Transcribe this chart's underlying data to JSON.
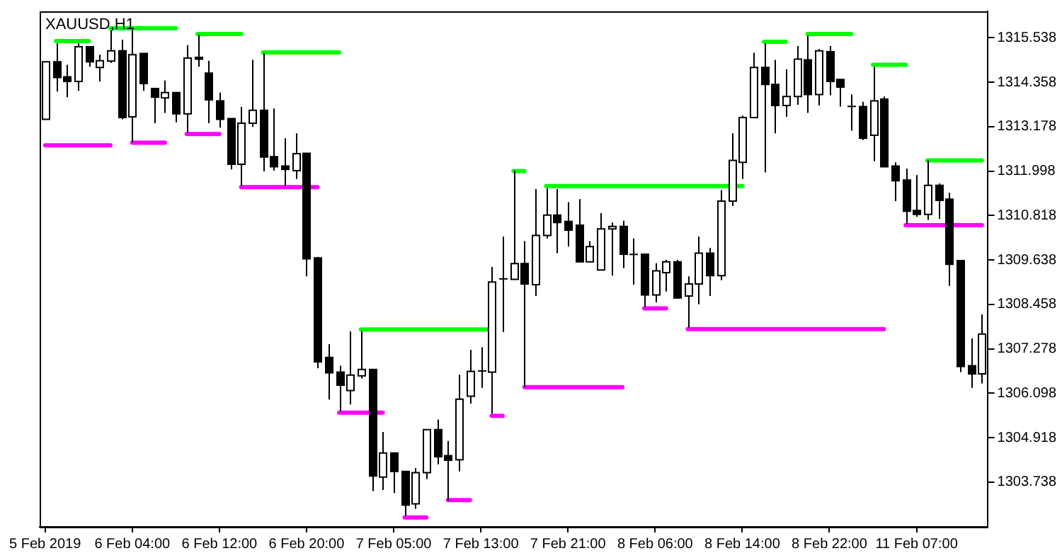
{
  "chart_data": {
    "type": "candlestick",
    "title": "XAUUSD,H1",
    "categories": [
      "5 Feb 2019",
      null,
      null,
      null,
      null,
      null,
      null,
      null,
      "6 Feb 04:00",
      null,
      null,
      null,
      null,
      null,
      null,
      null,
      "6 Feb 12:00",
      null,
      null,
      null,
      null,
      null,
      null,
      null,
      "6 Feb 20:00",
      null,
      null,
      null,
      null,
      null,
      null,
      null,
      "7 Feb 05:00",
      null,
      null,
      null,
      null,
      null,
      null,
      null,
      "7 Feb 13:00",
      null,
      null,
      null,
      null,
      null,
      null,
      null,
      "7 Feb 21:00",
      null,
      null,
      null,
      null,
      null,
      null,
      null,
      "8 Feb 06:00",
      null,
      null,
      null,
      null,
      null,
      null,
      null,
      "8 Feb 14:00",
      null,
      null,
      null,
      null,
      null,
      null,
      null,
      "8 Feb 22:00",
      null,
      null,
      null,
      null,
      null,
      null,
      null,
      "11 Feb 07:00",
      null,
      null,
      null,
      null,
      null,
      null
    ],
    "ohlc": [
      [
        1313.37,
        1314.9,
        1313.37,
        1314.9
      ],
      [
        1314.9,
        1315.39,
        1314.11,
        1314.48
      ],
      [
        1314.5,
        1314.82,
        1313.96,
        1314.38
      ],
      [
        1314.38,
        1315.39,
        1314.13,
        1315.3
      ],
      [
        1315.3,
        1315.3,
        1314.77,
        1314.9
      ],
      [
        1314.75,
        1315.09,
        1314.38,
        1314.93
      ],
      [
        1314.92,
        1315.73,
        1314.87,
        1315.19
      ],
      [
        1315.19,
        1315.49,
        1313.37,
        1313.42
      ],
      [
        1313.44,
        1315.76,
        1312.77,
        1315.09
      ],
      [
        1315.12,
        1315.12,
        1314.13,
        1314.32
      ],
      [
        1314.19,
        1314.19,
        1313.27,
        1313.96
      ],
      [
        1313.94,
        1314.4,
        1313.54,
        1314.08
      ],
      [
        1314.08,
        1314.08,
        1313.29,
        1313.52
      ],
      [
        1313.52,
        1315.34,
        1313.02,
        1315.0
      ],
      [
        1315.02,
        1315.61,
        1314.77,
        1314.97
      ],
      [
        1314.6,
        1314.93,
        1313.27,
        1313.89
      ],
      [
        1313.86,
        1314.08,
        1313.15,
        1313.37
      ],
      [
        1313.39,
        1313.39,
        1312.04,
        1312.18
      ],
      [
        1312.18,
        1313.7,
        1311.6,
        1313.27
      ],
      [
        1313.27,
        1314.95,
        1313.17,
        1313.61
      ],
      [
        1313.61,
        1315.12,
        1311.99,
        1312.37
      ],
      [
        1312.38,
        1313.66,
        1312.01,
        1312.11
      ],
      [
        1312.13,
        1312.87,
        1311.6,
        1312.04
      ],
      [
        1312.01,
        1313.0,
        1311.79,
        1312.46
      ],
      [
        1312.47,
        1312.47,
        1309.2,
        1309.67
      ],
      [
        1309.69,
        1309.72,
        1306.76,
        1306.93
      ],
      [
        1307.05,
        1307.4,
        1305.93,
        1306.64
      ],
      [
        1306.66,
        1306.83,
        1305.62,
        1306.31
      ],
      [
        1306.17,
        1307.74,
        1305.8,
        1306.58
      ],
      [
        1306.56,
        1307.74,
        1306.49,
        1306.73
      ],
      [
        1306.73,
        1306.73,
        1303.5,
        1303.9
      ],
      [
        1303.87,
        1305.07,
        1303.53,
        1304.51
      ],
      [
        1304.51,
        1304.51,
        1303.45,
        1304.02
      ],
      [
        1304.02,
        1304.02,
        1302.84,
        1303.13
      ],
      [
        1303.16,
        1304.11,
        1303.03,
        1303.99
      ],
      [
        1303.99,
        1305.13,
        1303.82,
        1305.13
      ],
      [
        1305.13,
        1305.4,
        1304.21,
        1304.41
      ],
      [
        1304.44,
        1304.83,
        1303.25,
        1304.32
      ],
      [
        1304.33,
        1306.59,
        1304.02,
        1305.94
      ],
      [
        1306.02,
        1307.25,
        1305.82,
        1306.68
      ],
      [
        1306.68,
        1307.32,
        1306.24,
        1306.7
      ],
      [
        1306.66,
        1309.45,
        1305.56,
        1309.05
      ],
      [
        1309.12,
        1310.26,
        1307.72,
        1309.15
      ],
      [
        1309.12,
        1312.01,
        1309.12,
        1309.54
      ],
      [
        1309.54,
        1310.14,
        1306.27,
        1309.0
      ],
      [
        1308.98,
        1311.52,
        1308.68,
        1310.29
      ],
      [
        1310.29,
        1311.54,
        1310.21,
        1310.83
      ],
      [
        1310.83,
        1311.52,
        1309.82,
        1310.63
      ],
      [
        1310.66,
        1311.17,
        1309.99,
        1310.43
      ],
      [
        1310.56,
        1311.25,
        1309.59,
        1309.59
      ],
      [
        1309.59,
        1310.14,
        1309.59,
        1309.99
      ],
      [
        1309.37,
        1310.88,
        1309.37,
        1310.46
      ],
      [
        1310.46,
        1310.63,
        1309.22,
        1310.53
      ],
      [
        1310.53,
        1310.68,
        1309.42,
        1309.79
      ],
      [
        1309.79,
        1310.21,
        1308.98,
        1309.78
      ],
      [
        1309.79,
        1309.79,
        1308.39,
        1308.71
      ],
      [
        1308.71,
        1309.55,
        1308.51,
        1309.35
      ],
      [
        1309.3,
        1309.64,
        1308.8,
        1309.59
      ],
      [
        1309.59,
        1309.64,
        1308.61,
        1308.63
      ],
      [
        1308.68,
        1309.2,
        1307.84,
        1309.0
      ],
      [
        1309.0,
        1310.26,
        1308.46,
        1309.82
      ],
      [
        1309.82,
        1309.96,
        1308.68,
        1309.22
      ],
      [
        1309.22,
        1311.49,
        1309.1,
        1311.2
      ],
      [
        1311.2,
        1313.0,
        1311.07,
        1312.28
      ],
      [
        1312.23,
        1313.47,
        1311.79,
        1313.42
      ],
      [
        1313.42,
        1315.14,
        1313.42,
        1314.75
      ],
      [
        1314.75,
        1315.39,
        1311.96,
        1314.3
      ],
      [
        1314.3,
        1314.95,
        1313.0,
        1313.74
      ],
      [
        1313.74,
        1314.7,
        1313.44,
        1313.98
      ],
      [
        1313.98,
        1315.32,
        1313.76,
        1314.97
      ],
      [
        1314.95,
        1315.59,
        1313.54,
        1314.03
      ],
      [
        1314.03,
        1315.24,
        1313.74,
        1315.19
      ],
      [
        1315.17,
        1315.32,
        1314.01,
        1314.38
      ],
      [
        1314.43,
        1314.43,
        1313.71,
        1314.23
      ],
      [
        1313.73,
        1314.03,
        1313.07,
        1313.7
      ],
      [
        1313.71,
        1313.84,
        1312.82,
        1312.87
      ],
      [
        1312.95,
        1314.77,
        1312.26,
        1313.86
      ],
      [
        1313.91,
        1313.98,
        1312.11,
        1312.11
      ],
      [
        1312.13,
        1312.23,
        1311.2,
        1311.74
      ],
      [
        1311.76,
        1312.06,
        1310.6,
        1310.93
      ],
      [
        1310.95,
        1311.89,
        1310.78,
        1310.85
      ],
      [
        1310.85,
        1312.28,
        1310.7,
        1311.62
      ],
      [
        1311.62,
        1311.67,
        1310.73,
        1311.22
      ],
      [
        1311.25,
        1311.42,
        1308.95,
        1309.52
      ],
      [
        1309.62,
        1309.62,
        1306.66,
        1306.81
      ],
      [
        1306.83,
        1307.55,
        1306.24,
        1306.61
      ],
      [
        1306.61,
        1308.19,
        1306.36,
        1307.67
      ]
    ],
    "series": [
      {
        "type": "line",
        "color": "#00ff00",
        "values": [
          null,
          1315.45,
          1315.45,
          1315.45,
          1315.45,
          null,
          1315.79,
          1315.79,
          1315.79,
          1315.79,
          1315.79,
          1315.79,
          1315.79,
          null,
          1315.64,
          1315.64,
          1315.64,
          1315.64,
          1315.64,
          null,
          1315.15,
          1315.15,
          1315.15,
          1315.15,
          1315.15,
          1315.15,
          1315.15,
          1315.15,
          null,
          1307.79,
          1307.79,
          1307.79,
          1307.79,
          1307.79,
          1307.79,
          1307.79,
          1307.79,
          1307.79,
          1307.79,
          1307.79,
          1307.79,
          1307.79,
          null,
          1312.0,
          1312.0,
          null,
          1311.6,
          1311.6,
          1311.6,
          1311.6,
          1311.6,
          1311.6,
          1311.6,
          1311.6,
          1311.6,
          1311.6,
          1311.6,
          1311.6,
          1311.6,
          1311.6,
          1311.6,
          1311.6,
          1311.6,
          1311.6,
          1311.6,
          null,
          1315.43,
          1315.43,
          1315.43,
          null,
          1315.64,
          1315.64,
          1315.64,
          1315.64,
          1315.64,
          null,
          1314.82,
          1314.82,
          1314.82,
          1314.82,
          null,
          1312.28,
          1312.28,
          1312.28,
          1312.28,
          1312.28,
          1312.28
        ]
      },
      {
        "type": "line",
        "color": "#ff00ff",
        "values": [
          1312.68,
          1312.68,
          1312.68,
          1312.68,
          1312.68,
          1312.68,
          1312.68,
          null,
          1312.75,
          1312.75,
          1312.75,
          1312.75,
          null,
          1312.98,
          1312.98,
          1312.98,
          1312.98,
          null,
          1311.57,
          1311.57,
          1311.57,
          1311.57,
          1311.57,
          1311.57,
          1311.57,
          1311.57,
          null,
          1305.58,
          1305.58,
          1305.58,
          1305.58,
          1305.58,
          null,
          1302.8,
          1302.8,
          1302.8,
          null,
          1303.26,
          1303.26,
          1303.26,
          null,
          1305.5,
          1305.5,
          null,
          1306.26,
          1306.26,
          1306.26,
          1306.26,
          1306.26,
          1306.26,
          1306.26,
          1306.26,
          1306.26,
          1306.26,
          null,
          1308.35,
          1308.35,
          1308.35,
          null,
          1307.8,
          1307.8,
          1307.8,
          1307.8,
          1307.8,
          1307.8,
          1307.8,
          1307.8,
          1307.8,
          1307.8,
          1307.8,
          1307.8,
          1307.8,
          1307.8,
          1307.8,
          1307.8,
          1307.8,
          1307.8,
          1307.8,
          null,
          1310.56,
          1310.56,
          1310.56,
          1310.56,
          1310.56,
          1310.56,
          1310.56,
          1310.56
        ]
      }
    ],
    "ylim": [
      1302.55,
      1316.24
    ],
    "yticks": [
      1303.738,
      1304.918,
      1306.098,
      1307.278,
      1308.458,
      1309.638,
      1310.818,
      1311.998,
      1313.178,
      1314.358,
      1315.538
    ],
    "grid": false,
    "legend": false
  }
}
